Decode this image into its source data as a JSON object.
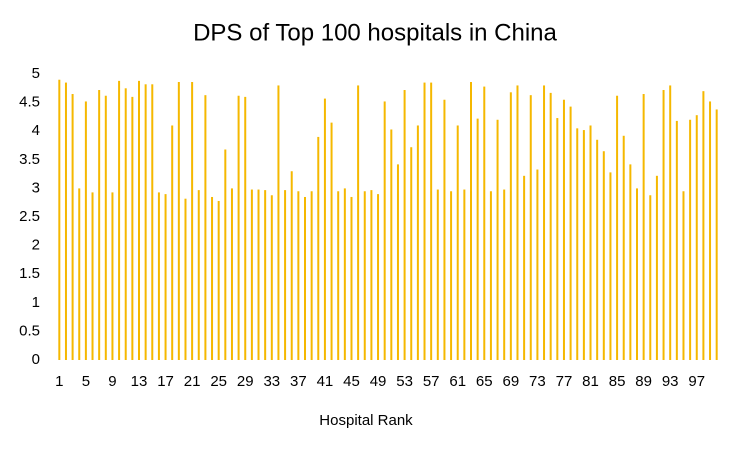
{
  "chart_data": {
    "type": "bar",
    "title": "DPS of Top 100 hospitals in China",
    "x_label": "Hospital Rank",
    "categories": [
      "1",
      null,
      null,
      null,
      "5",
      null,
      null,
      null,
      "9",
      null,
      null,
      null,
      "13",
      null,
      null,
      null,
      "17",
      null,
      null,
      null,
      "21",
      null,
      null,
      null,
      "25",
      null,
      null,
      null,
      "29",
      null,
      null,
      null,
      "33",
      null,
      null,
      null,
      "37",
      null,
      null,
      null,
      "41",
      null,
      null,
      null,
      "45",
      null,
      null,
      null,
      "49",
      null,
      null,
      null,
      "53",
      null,
      null,
      null,
      "57",
      null,
      null,
      null,
      "61",
      null,
      null,
      null,
      "65",
      null,
      null,
      null,
      "69",
      null,
      null,
      null,
      "73",
      null,
      null,
      null,
      "77",
      null,
      null,
      null,
      "81",
      null,
      null,
      null,
      "85",
      null,
      null,
      null,
      "89",
      null,
      null,
      null,
      "93",
      null,
      null,
      null,
      "97",
      null,
      null,
      null
    ],
    "values": [
      4.9,
      4.85,
      4.65,
      3.0,
      4.52,
      2.93,
      4.72,
      4.62,
      2.93,
      4.88,
      4.75,
      4.6,
      4.88,
      4.82,
      4.82,
      2.93,
      2.9,
      4.1,
      4.86,
      2.82,
      4.86,
      2.97,
      4.63,
      2.85,
      2.78,
      3.68,
      3.0,
      4.62,
      4.6,
      2.98,
      2.98,
      2.97,
      2.88,
      4.8,
      2.97,
      3.3,
      2.95,
      2.85,
      2.95,
      3.9,
      4.57,
      4.15,
      2.95,
      3.0,
      2.85,
      4.8,
      2.95,
      2.97,
      2.9,
      4.52,
      4.03,
      3.42,
      4.72,
      3.72,
      4.1,
      4.85,
      4.85,
      2.98,
      4.55,
      2.95,
      4.1,
      2.98,
      4.86,
      4.22,
      4.78,
      2.95,
      4.2,
      2.98,
      4.68,
      4.8,
      3.22,
      4.63,
      3.33,
      4.8,
      4.67,
      4.23,
      4.55,
      4.43,
      4.05,
      4.02,
      4.1,
      3.85,
      3.65,
      3.28,
      4.62,
      3.92,
      3.42,
      3.0,
      4.65,
      2.88,
      3.22,
      4.72,
      4.8,
      4.18,
      2.95,
      4.2,
      4.28,
      4.7,
      4.52,
      4.38
    ],
    "color": "#f5b800",
    "ylim": [
      0,
      5
    ],
    "yticks": [
      0,
      0.5,
      1,
      1.5,
      2,
      2.5,
      3,
      3.5,
      4,
      4.5,
      5
    ],
    "grid": false
  }
}
